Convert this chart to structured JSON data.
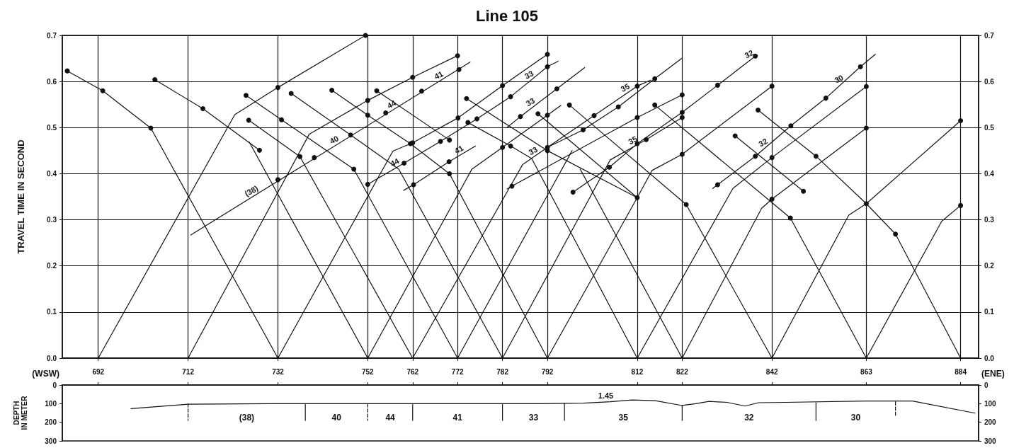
{
  "chart_data": [
    {
      "type": "line",
      "title": "Line 105",
      "ylabel": "TRAVEL TIME IN SECOND",
      "xlim": [
        684,
        888
      ],
      "xticks": [
        692,
        712,
        732,
        752,
        762,
        772,
        782,
        792,
        812,
        822,
        842,
        863,
        884
      ],
      "ylim": [
        0,
        0.7
      ],
      "yticks": [
        {
          "value": 0,
          "label": "0.0"
        },
        0.1,
        0.2,
        0.3,
        0.4,
        0.5,
        0.6,
        0.7
      ],
      "y2lim": [
        0,
        0.7
      ],
      "y2ticks": [
        {
          "value": 0,
          "label": "0.0"
        },
        0.1,
        0.2,
        0.3,
        0.4,
        0.5,
        0.6,
        0.7
      ],
      "grid": true,
      "marker": "none",
      "series": [
        {
          "color": "#111111",
          "x": [
            685.1,
            693.0,
            703.7,
            732
          ],
          "values": [
            0.623,
            0.58,
            0.499,
            0
          ]
        },
        {
          "color": "#111111",
          "x": [
            704.6,
            715.3,
            727.9
          ],
          "values": [
            0.604,
            0.541,
            0.451
          ]
        },
        {
          "color": "#111111",
          "x": [
            752,
            725.6
          ],
          "values": [
            0,
            0.469
          ]
        },
        {
          "color": "#111111",
          "x": [
            692,
            722.4,
            732,
            751.5
          ],
          "values": [
            0,
            0.528,
            0.587,
            0.7
          ]
        },
        {
          "color": "#111111",
          "x": [
            712,
            739,
            752,
            762,
            772
          ],
          "values": [
            0,
            0.486,
            0.559,
            0.609,
            0.656
          ]
        },
        {
          "color": "#111111",
          "x": [
            712.6,
            774.8
          ],
          "values": [
            0.267,
            0.642
          ]
        },
        {
          "color": "#111111",
          "x": [
            725.5,
            736.9,
            762
          ],
          "values": [
            0.516,
            0.437,
            0
          ]
        },
        {
          "color": "#111111",
          "x": [
            724.9,
            732.8,
            748.9,
            772
          ],
          "values": [
            0.57,
            0.517,
            0.41,
            0
          ]
        },
        {
          "color": "#111111",
          "x": [
            734.95,
            748.2,
            758.9,
            782
          ],
          "values": [
            0.574,
            0.484,
            0.41,
            0
          ]
        },
        {
          "color": "#111111",
          "x": [
            744.0,
            752,
            761.5,
            770.2,
            792
          ],
          "values": [
            0.581,
            0.527,
            0.465,
            0.4,
            0
          ]
        },
        {
          "color": "#111111",
          "x": [
            754.0,
            770.2
          ],
          "values": [
            0.58,
            0.473
          ]
        },
        {
          "color": "#111111",
          "x": [
            732,
            757.6,
            762,
            772.1,
            782,
            792
          ],
          "values": [
            0,
            0.449,
            0.467,
            0.521,
            0.591,
            0.659
          ]
        },
        {
          "color": "#111111",
          "x": [
            752,
            760.1,
            768.2,
            776.3,
            783.8,
            792,
            794.4
          ],
          "values": [
            0.377,
            0.423,
            0.47,
            0.519,
            0.567,
            0.632,
            0.644
          ]
        },
        {
          "color": "#111111",
          "x": [
            760,
            762.2,
            770.1,
            776
          ],
          "values": [
            0.364,
            0.376,
            0.426,
            0.46
          ]
        },
        {
          "color": "#111111",
          "x": [
            752,
            775.2,
            782,
            792,
            795
          ],
          "values": [
            0,
            0.41,
            0.457,
            0.527,
            0.548
          ]
        },
        {
          "color": "#111111",
          "x": [
            783,
            786,
            794.1,
            800.3
          ],
          "values": [
            0.5,
            0.524,
            0.584,
            0.63
          ]
        },
        {
          "color": "#111111",
          "x": [
            774,
            792,
            812
          ],
          "values": [
            0.563,
            0.45,
            0.348
          ]
        },
        {
          "color": "#111111",
          "x": [
            774.3,
            783.8,
            788.5,
            812
          ],
          "values": [
            0.511,
            0.46,
            0.433,
            0
          ]
        },
        {
          "color": "#111111",
          "x": [
            789.9,
            812
          ],
          "values": [
            0.53,
            0.348
          ]
        },
        {
          "color": "#111111",
          "x": [
            792,
            812,
            815.3,
            822,
            842
          ],
          "values": [
            0,
            0.348,
            0.407,
            0.442,
            0.59
          ]
        },
        {
          "color": "#111111",
          "x": [
            796.9,
            822.9,
            842
          ],
          "values": [
            0.549,
            0.333,
            0
          ]
        },
        {
          "color": "#111111",
          "x": [
            815.9,
            846.1,
            863
          ],
          "values": [
            0.549,
            0.304,
            0
          ]
        },
        {
          "color": "#111111",
          "x": [
            762,
            786.5,
            792,
            802.4,
            812,
            815
          ],
          "values": [
            0,
            0.42,
            0.457,
            0.526,
            0.59,
            0.603
          ]
        },
        {
          "color": "#111111",
          "x": [
            792,
            799.95,
            807.8,
            815.9,
            822
          ],
          "values": [
            0.457,
            0.495,
            0.545,
            0.606,
            0.651
          ]
        },
        {
          "color": "#111111",
          "x": [
            783,
            784.1,
            812,
            822
          ],
          "values": [
            0.367,
            0.373,
            0.522,
            0.571
          ]
        },
        {
          "color": "#111111",
          "x": [
            782,
            806,
            814,
            822
          ],
          "values": [
            0,
            0.43,
            0.474,
            0.522
          ]
        },
        {
          "color": "#111111",
          "x": [
            797.7,
            805.8,
            812,
            822,
            829.9,
            838.3
          ],
          "values": [
            0.36,
            0.414,
            0.465,
            0.533,
            0.592,
            0.655
          ]
        },
        {
          "color": "#111111",
          "x": [
            828.8,
            838.3,
            846.2,
            854,
            861.7,
            865
          ],
          "values": [
            0.368,
            0.438,
            0.504,
            0.564,
            0.632,
            0.659
          ]
        },
        {
          "color": "#111111",
          "x": [
            812,
            833.3,
            842,
            863
          ],
          "values": [
            0,
            0.368,
            0.435,
            0.589
          ]
        },
        {
          "color": "#111111",
          "x": [
            822,
            839.7,
            842,
            863
          ],
          "values": [
            0,
            0.325,
            0.345,
            0.499
          ]
        },
        {
          "color": "#111111",
          "x": [
            842,
            859.1,
            863,
            884
          ],
          "values": [
            0,
            0.31,
            0.335,
            0.515
          ]
        },
        {
          "color": "#111111",
          "x": [
            863,
            879.8,
            884
          ],
          "values": [
            0,
            0.297,
            0.331
          ]
        },
        {
          "color": "#111111",
          "x": [
            838.9,
            851.8,
            863,
            869.5,
            884
          ],
          "values": [
            0.538,
            0.438,
            0.335,
            0.269,
            0
          ]
        },
        {
          "color": "#111111",
          "x": [
            833.8,
            849
          ],
          "values": [
            0.482,
            0.362
          ]
        },
        {
          "color": "#111111",
          "x": [
            772,
            797.5
          ],
          "values": [
            0,
            0.45
          ]
        },
        {
          "color": "#111111",
          "x": [
            822,
            799.3
          ],
          "values": [
            0,
            0.41
          ]
        },
        {
          "type": "scatter",
          "marker": "circle",
          "color": "#111111",
          "x": [
            685.1,
            693.0,
            703.7,
            704.6,
            715.3,
            727.9,
            724.9,
            732.8,
            748.9,
            725.5,
            736.9,
            734.95,
            748.2,
            744.0,
            752,
            761.5,
            770.2,
            754.0,
            770.2,
            732,
            751.5,
            752,
            762,
            772,
            732,
            740.1,
            756,
            764,
            772.3,
            762,
            772.1,
            782,
            792,
            752,
            760.1,
            768.2,
            776.3,
            783.8,
            792,
            762.2,
            770.1,
            782,
            792,
            786,
            794.1,
            774,
            792,
            774.3,
            783.8,
            789.9,
            812,
            796.9,
            822.9,
            815.9,
            846.1,
            802.4,
            812,
            792,
            799.95,
            807.8,
            815.9,
            784.1,
            812,
            822,
            814,
            822,
            822,
            842,
            797.7,
            805.8,
            812,
            822,
            829.9,
            838.3,
            829.9,
            838.3,
            846.2,
            854,
            861.7,
            842,
            863,
            842,
            863,
            863,
            884,
            884,
            838.9,
            851.8,
            869.5,
            833.8,
            849
          ],
          "values": [
            0.623,
            0.58,
            0.499,
            0.604,
            0.541,
            0.451,
            0.57,
            0.517,
            0.41,
            0.516,
            0.437,
            0.574,
            0.484,
            0.581,
            0.527,
            0.465,
            0.4,
            0.58,
            0.473,
            0.587,
            0.7,
            0.559,
            0.609,
            0.656,
            0.387,
            0.435,
            0.532,
            0.579,
            0.626,
            0.467,
            0.521,
            0.591,
            0.659,
            0.377,
            0.423,
            0.47,
            0.519,
            0.567,
            0.632,
            0.376,
            0.426,
            0.457,
            0.527,
            0.524,
            0.584,
            0.563,
            0.45,
            0.511,
            0.46,
            0.53,
            0.348,
            0.549,
            0.333,
            0.549,
            0.304,
            0.526,
            0.59,
            0.457,
            0.495,
            0.545,
            0.606,
            0.373,
            0.522,
            0.571,
            0.474,
            0.522,
            0.442,
            0.59,
            0.36,
            0.414,
            0.465,
            0.533,
            0.592,
            0.655,
            0.376,
            0.438,
            0.504,
            0.564,
            0.632,
            0.435,
            0.589,
            0.345,
            0.499,
            0.335,
            0.515,
            0.331,
            0.538,
            0.438,
            0.269,
            0.482,
            0.362
          ]
        }
      ],
      "annotations": [
        "(WSW)",
        "(ENE)",
        {
          "text": "(38)",
          "x": 726.7,
          "y": 0.352
        },
        {
          "text": "40",
          "x": 745.1,
          "y": 0.463
        },
        {
          "text": "44",
          "x": 757.9,
          "y": 0.54
        },
        {
          "text": "41",
          "x": 768.4,
          "y": 0.603
        },
        {
          "text": "44",
          "x": 758.6,
          "y": 0.414
        },
        {
          "text": "41",
          "x": 772.9,
          "y": 0.442
        },
        {
          "text": "33",
          "x": 788.5,
          "y": 0.604
        },
        {
          "text": "33",
          "x": 788.8,
          "y": 0.545
        },
        {
          "text": "33",
          "x": 789.4,
          "y": 0.439
        },
        {
          "text": "35",
          "x": 809.9,
          "y": 0.576
        },
        {
          "text": "35",
          "x": 811.6,
          "y": 0.462
        },
        {
          "text": "32",
          "x": 837.5,
          "y": 0.649
        },
        {
          "text": "32",
          "x": 840.6,
          "y": 0.457
        },
        {
          "text": "30",
          "x": 857.5,
          "y": 0.595
        }
      ]
    },
    {
      "type": "line",
      "ylabel": "DEPTH IN METER",
      "xlim": [
        684,
        888
      ],
      "xticks": [
        692,
        712,
        732,
        752,
        762,
        772,
        782,
        792,
        812,
        822,
        842,
        863,
        884
      ],
      "ylim": [
        300,
        0
      ],
      "yticks": [
        0,
        100,
        200,
        300
      ],
      "y2lim": [
        300,
        0
      ],
      "y2ticks": [
        0,
        100,
        200,
        300
      ],
      "tick_labels": "y",
      "marker": "none",
      "series": [
        {
          "color": "#111111",
          "x": [
            699.3,
            712,
            730,
            760,
            790,
            800,
            806,
            810.8,
            816,
            822,
            825,
            828,
            832,
            836,
            839,
            845,
            863,
            873.3,
            887.2
          ],
          "values": [
            127,
            103,
            100,
            100,
            100,
            97,
            90,
            80,
            84,
            110,
            100,
            88,
            93,
            113,
            95,
            93,
            86,
            86,
            151
          ]
        },
        {
          "color": "#111111",
          "line_style": "dashed",
          "x": [
            712,
            712
          ],
          "values": [
            100,
            190
          ]
        },
        {
          "color": "#111111",
          "x": [
            738.1,
            738.1
          ],
          "values": [
            100,
            190
          ]
        },
        {
          "color": "#111111",
          "line_style": "dashed",
          "x": [
            752,
            752
          ],
          "values": [
            100,
            190
          ]
        },
        {
          "color": "#111111",
          "x": [
            762,
            762
          ],
          "values": [
            100,
            190
          ]
        },
        {
          "color": "#111111",
          "x": [
            782,
            782
          ],
          "values": [
            100,
            190
          ]
        },
        {
          "color": "#111111",
          "x": [
            795.8,
            795.8
          ],
          "values": [
            100,
            190
          ]
        },
        {
          "color": "#111111",
          "x": [
            822,
            822
          ],
          "values": [
            110,
            190
          ]
        },
        {
          "color": "#111111",
          "x": [
            851.8,
            851.8
          ],
          "values": [
            95,
            190
          ]
        },
        {
          "color": "#111111",
          "line_style": "dashed",
          "x": [
            869.5,
            869.5
          ],
          "values": [
            90,
            170
          ]
        }
      ],
      "annotations": [
        "(38)",
        "40",
        "44",
        "41",
        "33",
        "35",
        "32",
        "30",
        {
          "text": "1.45",
          "x": 805,
          "y": 91
        }
      ]
    }
  ]
}
